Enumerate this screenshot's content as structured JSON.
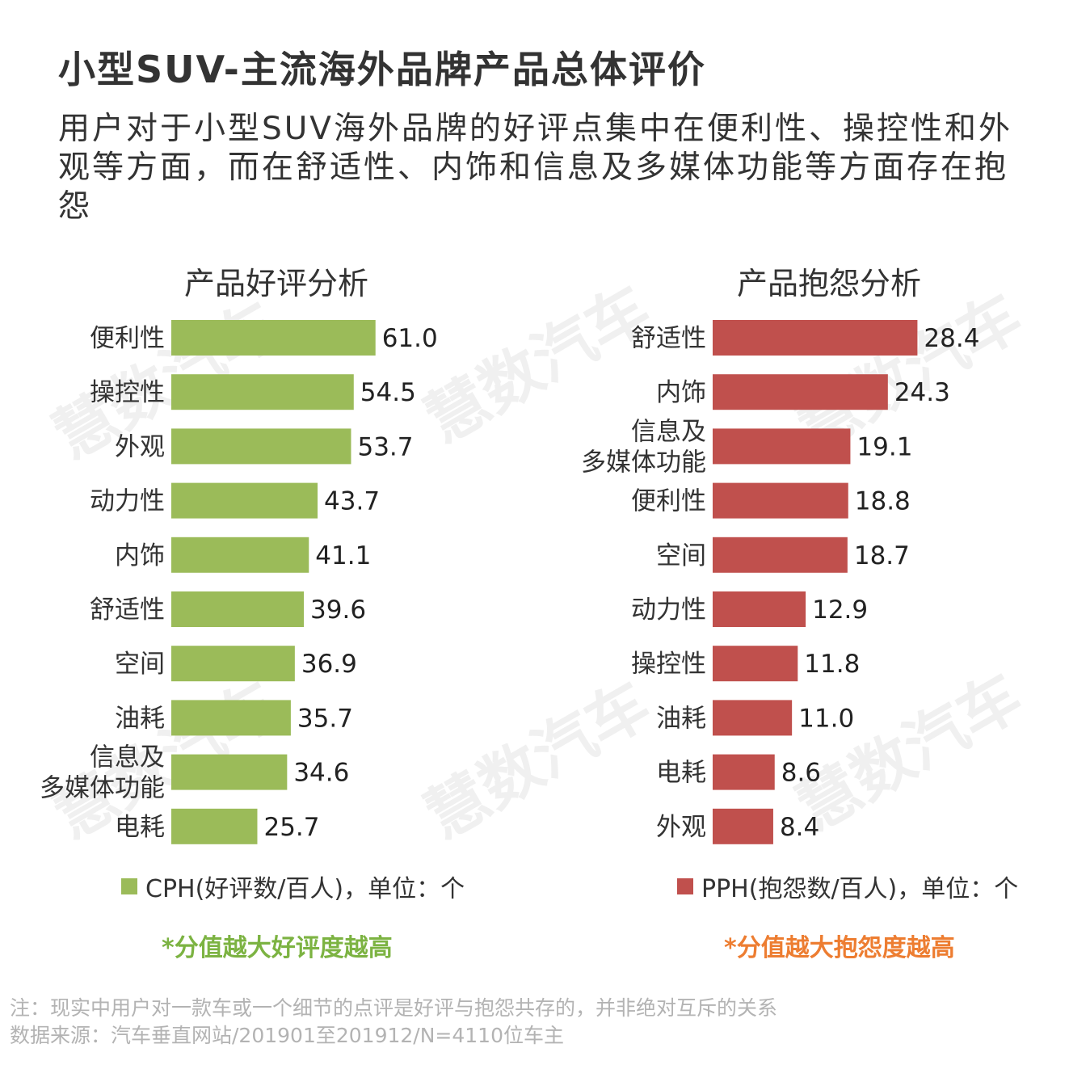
{
  "title": "小型SUV-主流海外品牌产品总体评价",
  "subtitle": "用户对于小型SUV海外品牌的好评点集中在便利性、操控性和外观等方面，而在舒适性、内饰和信息及多媒体功能等方面存在抱怨",
  "watermark": "慧数汽车",
  "chart_data": [
    {
      "type": "bar",
      "orientation": "horizontal",
      "title": "产品好评分析",
      "categories": [
        "便利性",
        "操控性",
        "外观",
        "动力性",
        "内饰",
        "舒适性",
        "空间",
        "油耗",
        "信息及\n多媒体功能",
        "电耗"
      ],
      "values": [
        61.0,
        54.5,
        53.7,
        43.7,
        41.1,
        39.6,
        36.9,
        35.7,
        34.6,
        25.7
      ],
      "color": "#9bbb59",
      "legend": "CPH(好评数/百人)，单位：个",
      "note": "*分值越大好评度越高",
      "note_color": "#7cb342",
      "xlim": [
        0,
        70
      ]
    },
    {
      "type": "bar",
      "orientation": "horizontal",
      "title": "产品抱怨分析",
      "categories": [
        "舒适性",
        "内饰",
        "信息及\n多媒体功能",
        "便利性",
        "空间",
        "动力性",
        "操控性",
        "油耗",
        "电耗",
        "外观"
      ],
      "values": [
        28.4,
        24.3,
        19.1,
        18.8,
        18.7,
        12.9,
        11.8,
        11.0,
        8.6,
        8.4
      ],
      "color": "#c0504d",
      "legend": "PPH(抱怨数/百人)，单位：个",
      "note": "*分值越大抱怨度越高",
      "note_color": "#ed7d31",
      "xlim": [
        0,
        32.5
      ]
    }
  ],
  "footnotes": [
    "注：现实中用户对一款车或一个细节的点评是好评与抱怨共存的，并非绝对互斥的关系",
    "数据来源：汽车垂直网站/201901至201912/N=4110位车主"
  ]
}
